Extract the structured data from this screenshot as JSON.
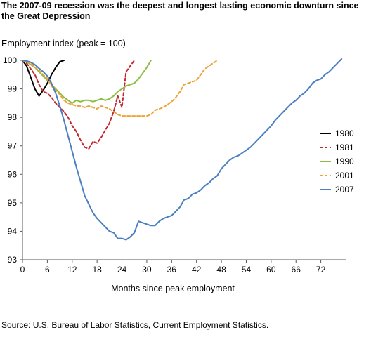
{
  "title": "The 2007-09 recession was the deepest and longest lasting economic downturn since the Great Depression",
  "source": "Source: U.S. Bureau of Labor Statistics, Current Employment Statistics.",
  "chart_data": {
    "type": "line",
    "title": "The 2007-09 recession was the deepest and longest lasting economic downturn since the Great Depression",
    "ylabel": "Employment index (peak = 100)",
    "xlabel": "Months since peak employment",
    "xlim": [
      0,
      78
    ],
    "ylim": [
      93,
      100
    ],
    "xticks": [
      0,
      6,
      12,
      18,
      24,
      30,
      36,
      42,
      48,
      54,
      60,
      66,
      72
    ],
    "yticks": [
      93,
      94,
      95,
      96,
      97,
      98,
      99,
      100
    ],
    "grid": false,
    "legend_position": "right",
    "series": [
      {
        "name": "1980",
        "color": "#000000",
        "dash": "solid",
        "x": [
          0,
          1,
          2,
          3,
          4,
          5,
          6,
          7,
          8,
          9,
          10
        ],
        "y": [
          100,
          99.8,
          99.4,
          99.0,
          98.75,
          98.95,
          99.2,
          99.5,
          99.75,
          99.95,
          100.0
        ]
      },
      {
        "name": "1981",
        "color": "#c0282e",
        "dash": "dash",
        "x": [
          0,
          1,
          2,
          3,
          4,
          5,
          6,
          7,
          8,
          9,
          10,
          11,
          12,
          13,
          14,
          15,
          16,
          17,
          18,
          19,
          20,
          21,
          22,
          23,
          24,
          25,
          26,
          27
        ],
        "y": [
          100,
          99.9,
          99.7,
          99.5,
          99.15,
          98.9,
          98.85,
          98.7,
          98.5,
          98.35,
          98.2,
          98.0,
          97.7,
          97.5,
          97.2,
          96.95,
          96.9,
          97.15,
          97.1,
          97.3,
          97.55,
          97.8,
          98.2,
          98.75,
          98.35,
          99.6,
          99.8,
          100.0
        ]
      },
      {
        "name": "1990",
        "color": "#8cbd44",
        "dash": "solid",
        "x": [
          0,
          1,
          2,
          3,
          4,
          5,
          6,
          7,
          8,
          9,
          10,
          11,
          12,
          13,
          14,
          15,
          16,
          17,
          18,
          19,
          20,
          21,
          22,
          23,
          24,
          25,
          26,
          27,
          28,
          29,
          30,
          31
        ],
        "y": [
          100,
          99.95,
          99.85,
          99.75,
          99.6,
          99.45,
          99.3,
          99.15,
          99.0,
          98.85,
          98.7,
          98.6,
          98.5,
          98.6,
          98.55,
          98.6,
          98.6,
          98.55,
          98.6,
          98.65,
          98.6,
          98.65,
          98.75,
          98.9,
          99.0,
          99.1,
          99.15,
          99.2,
          99.35,
          99.55,
          99.75,
          100.0
        ]
      },
      {
        "name": "2001",
        "color": "#f0a23a",
        "dash": "dash",
        "x": [
          0,
          1,
          2,
          3,
          4,
          5,
          6,
          7,
          8,
          9,
          10,
          11,
          12,
          13,
          14,
          15,
          16,
          17,
          18,
          19,
          20,
          21,
          22,
          23,
          24,
          25,
          26,
          27,
          28,
          29,
          30,
          31,
          32,
          33,
          34,
          35,
          36,
          37,
          38,
          39,
          40,
          41,
          42,
          43,
          44,
          45,
          46,
          47
        ],
        "y": [
          100,
          99.95,
          99.9,
          99.75,
          99.65,
          99.5,
          99.35,
          99.1,
          98.95,
          98.8,
          98.6,
          98.5,
          98.45,
          98.4,
          98.4,
          98.35,
          98.4,
          98.35,
          98.3,
          98.4,
          98.35,
          98.3,
          98.2,
          98.1,
          98.05,
          98.05,
          98.05,
          98.05,
          98.05,
          98.05,
          98.05,
          98.1,
          98.25,
          98.3,
          98.35,
          98.45,
          98.55,
          98.7,
          98.9,
          99.15,
          99.2,
          99.25,
          99.3,
          99.5,
          99.7,
          99.8,
          99.9,
          100.0
        ]
      },
      {
        "name": "2007",
        "color": "#4a7fc1",
        "dash": "solid",
        "x": [
          0,
          1,
          2,
          3,
          4,
          5,
          6,
          7,
          8,
          9,
          10,
          11,
          12,
          13,
          14,
          15,
          16,
          17,
          18,
          19,
          20,
          21,
          22,
          23,
          24,
          25,
          26,
          27,
          28,
          29,
          30,
          31,
          32,
          33,
          34,
          35,
          36,
          37,
          38,
          39,
          40,
          41,
          42,
          43,
          44,
          45,
          46,
          47,
          48,
          49,
          50,
          51,
          52,
          53,
          54,
          55,
          56,
          57,
          58,
          59,
          60,
          61,
          62,
          63,
          64,
          65,
          66,
          67,
          68,
          69,
          70,
          71,
          72,
          73,
          74,
          75,
          76,
          77
        ],
        "y": [
          100,
          99.98,
          99.93,
          99.85,
          99.72,
          99.6,
          99.45,
          99.2,
          98.85,
          98.4,
          97.9,
          97.35,
          96.8,
          96.25,
          95.75,
          95.25,
          94.95,
          94.65,
          94.45,
          94.3,
          94.15,
          94.0,
          93.95,
          93.75,
          93.75,
          93.7,
          93.8,
          93.95,
          94.35,
          94.3,
          94.25,
          94.2,
          94.2,
          94.35,
          94.45,
          94.5,
          94.55,
          94.7,
          94.85,
          95.1,
          95.15,
          95.3,
          95.35,
          95.45,
          95.6,
          95.7,
          95.85,
          95.95,
          96.2,
          96.35,
          96.5,
          96.6,
          96.65,
          96.75,
          96.85,
          96.95,
          97.1,
          97.25,
          97.4,
          97.55,
          97.7,
          97.9,
          98.05,
          98.2,
          98.35,
          98.5,
          98.6,
          98.75,
          98.85,
          99.0,
          99.2,
          99.3,
          99.35,
          99.5,
          99.6,
          99.75,
          99.9,
          100.05
        ]
      }
    ]
  }
}
